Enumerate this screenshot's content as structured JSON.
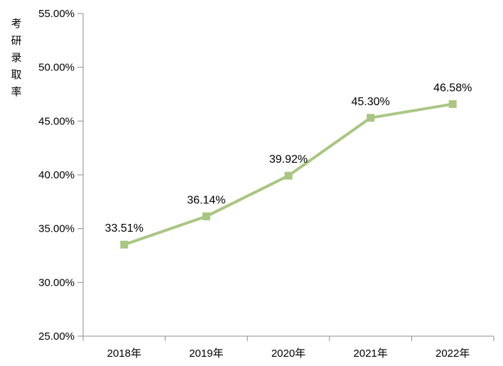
{
  "chart_data": {
    "type": "line",
    "title": "",
    "ylabel": "考研录取率",
    "xlabel": "",
    "categories": [
      "2018年",
      "2019年",
      "2020年",
      "2021年",
      "2022年"
    ],
    "series": [
      {
        "name": "考研录取率",
        "values": [
          33.51,
          36.14,
          39.92,
          45.3,
          46.58
        ]
      }
    ],
    "data_labels": [
      "33.51%",
      "36.14%",
      "39.92%",
      "45.30%",
      "46.58%"
    ],
    "y_axis": {
      "min": 25,
      "max": 55,
      "step": 5,
      "tick_labels": [
        "25.00%",
        "30.00%",
        "35.00%",
        "40.00%",
        "45.00%",
        "50.00%",
        "55.00%"
      ]
    },
    "grid": false,
    "legend": "none",
    "marker": "square",
    "colors": {
      "line": "#A9C682",
      "marker": "#A9C682",
      "axis": "#8C8C8C",
      "text": "#000000"
    }
  }
}
